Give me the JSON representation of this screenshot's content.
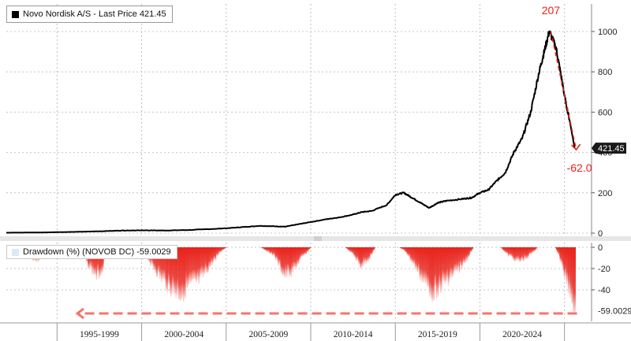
{
  "chart_data": [
    {
      "type": "line",
      "legend": "Novo Nordisk A/S - Last Price 421.45",
      "last_price_label": "421.45",
      "ylim": [
        -10,
        1080
      ],
      "yticks": [
        0,
        200,
        400,
        600,
        800,
        1000
      ],
      "series": [
        {
          "name": "Novo Nordisk A/S - Last Price",
          "x": [
            1992.0,
            1994.0,
            1996.0,
            1997.5,
            1998.5,
            2000.0,
            2001.5,
            2003.0,
            2005.0,
            2006.0,
            2007.0,
            2007.8,
            2008.5,
            2009.0,
            2010.0,
            2011.0,
            2011.7,
            2012.5,
            2013.0,
            2013.6,
            2014.5,
            2015.0,
            2015.5,
            2016.0,
            2016.5,
            2017.0,
            2017.5,
            2018.0,
            2019.0,
            2019.5,
            2020.0,
            2020.5,
            2021.0,
            2021.5,
            2022.0,
            2022.5,
            2023.0,
            2023.5,
            2023.8,
            2024.1,
            2024.5,
            2024.8,
            2025.0,
            2025.3,
            2025.6
          ],
          "values": [
            2,
            3,
            6,
            9,
            12,
            14,
            13,
            16,
            24,
            30,
            36,
            34,
            32,
            40,
            55,
            70,
            78,
            92,
            104,
            110,
            140,
            190,
            200,
            175,
            150,
            125,
            150,
            160,
            170,
            175,
            200,
            215,
            260,
            300,
            400,
            470,
            600,
            800,
            900,
            1000,
            920,
            780,
            680,
            560,
            421.45
          ]
        }
      ],
      "annotations": [
        {
          "text": "207",
          "color": "#e8231b"
        },
        {
          "text": "-62.0",
          "color": "#e8231b"
        }
      ]
    },
    {
      "type": "area",
      "legend": "Drawdown (%) (NOVOB DC) -59.0029",
      "last_value_label": "-59.0029",
      "ylim": [
        -62,
        2
      ],
      "yticks": [
        0,
        -20,
        -40
      ],
      "series": [
        {
          "name": "Drawdown (%) (NOVOB DC)",
          "x": [
            1992.0,
            1993.0,
            1993.3,
            1993.8,
            1994.1,
            1994.5,
            1996.2,
            1996.8,
            1997.3,
            1997.6,
            1998.0,
            1999.6,
            2000.2,
            2001.0,
            2001.8,
            2002.3,
            2002.8,
            2003.4,
            2004.0,
            2004.6,
            2005.0,
            2007.0,
            2007.8,
            2008.4,
            2008.9,
            2009.4,
            2010.0,
            2012.0,
            2012.5,
            2012.9,
            2013.4,
            2013.8,
            2015.2,
            2015.6,
            2016.3,
            2016.8,
            2017.2,
            2017.8,
            2018.3,
            2019.0,
            2019.6,
            2021.2,
            2021.6,
            2022.3,
            2022.8,
            2023.4,
            2024.0,
            2024.4,
            2024.6,
            2024.9,
            2025.2,
            2025.5,
            2025.6
          ],
          "values": [
            0,
            0,
            -10,
            -14,
            -8,
            0,
            0,
            -18,
            -30,
            -25,
            0,
            0,
            -8,
            -30,
            -45,
            -50,
            -40,
            -35,
            -20,
            -5,
            0,
            0,
            -8,
            -30,
            -25,
            -12,
            0,
            0,
            -8,
            -20,
            -12,
            0,
            0,
            -5,
            -25,
            -40,
            -48,
            -38,
            -30,
            -18,
            0,
            0,
            -8,
            -15,
            -10,
            0,
            0,
            0,
            -6,
            -25,
            -40,
            -59,
            -59.0029
          ]
        }
      ],
      "arrow_color": "#f4756b"
    }
  ],
  "x_axis": {
    "labels": [
      "1995-1999",
      "2000-2004",
      "2005-2009",
      "2010-2014",
      "2015-2019",
      "2020-2024"
    ],
    "boundaries": [
      1995,
      2000,
      2005,
      2010,
      2015,
      2020,
      2025
    ],
    "xlim": [
      1992.0,
      2026.6
    ]
  },
  "colors": {
    "price_line": "#000000",
    "drawdown_fill": "#e8231b",
    "annotation": "#e8231b",
    "last_price_tag_bg": "#1a1a1a"
  }
}
